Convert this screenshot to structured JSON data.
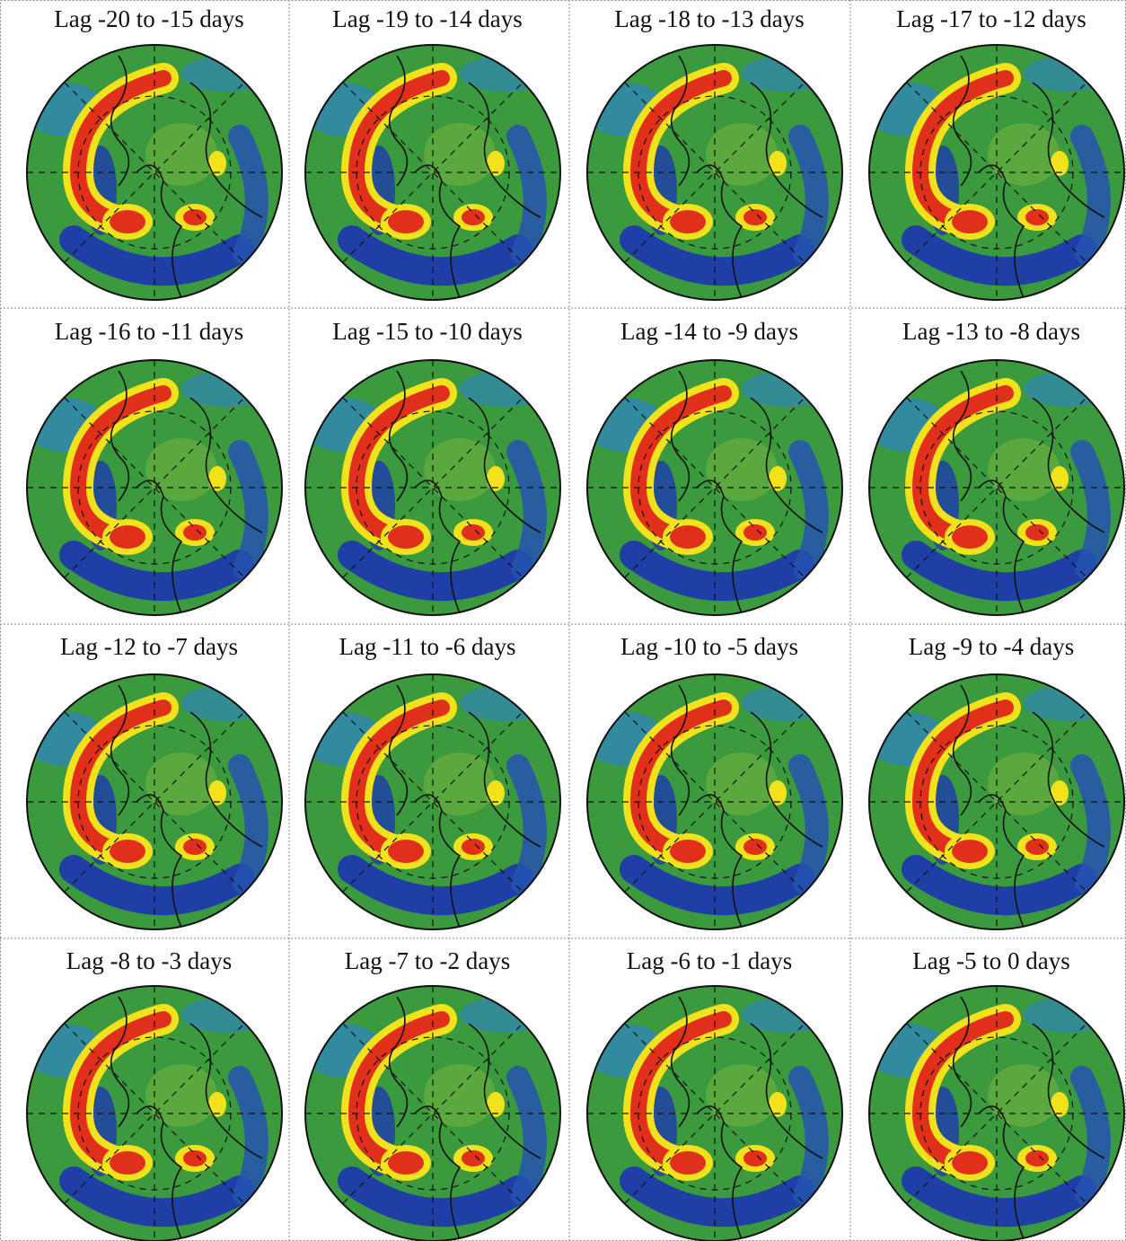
{
  "panels": [
    {
      "title": "Lag -20 to -15 days"
    },
    {
      "title": "Lag -19 to -14 days"
    },
    {
      "title": "Lag -18 to -13 days"
    },
    {
      "title": "Lag -17 to -12 days"
    },
    {
      "title": "Lag -16 to -11 days"
    },
    {
      "title": "Lag -15 to -10 days"
    },
    {
      "title": "Lag -14 to -9 days"
    },
    {
      "title": "Lag -13 to -8 days"
    },
    {
      "title": "Lag -12 to -7 days"
    },
    {
      "title": "Lag -11 to -6 days"
    },
    {
      "title": "Lag -10 to -5 days"
    },
    {
      "title": "Lag -9 to -4 days"
    },
    {
      "title": "Lag -8 to -3 days"
    },
    {
      "title": "Lag -7 to -2 days"
    },
    {
      "title": "Lag -6 to -1 days"
    },
    {
      "title": "Lag -5 to 0 days"
    }
  ]
}
